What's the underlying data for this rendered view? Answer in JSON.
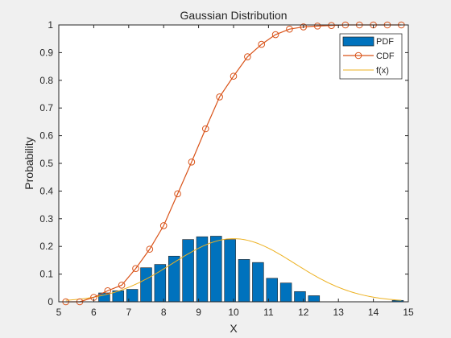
{
  "chart_data": {
    "type": "bar",
    "title": "Gaussian Distribution",
    "xlabel": "X",
    "ylabel": "Probability",
    "xlim": [
      5,
      15
    ],
    "ylim": [
      0,
      1
    ],
    "xticks": [
      "5",
      "6",
      "7",
      "8",
      "9",
      "10",
      "11",
      "12",
      "13",
      "14",
      "15"
    ],
    "yticks": [
      "0",
      "0.1",
      "0.2",
      "0.3",
      "0.4",
      "0.5",
      "0.6",
      "0.7",
      "0.8",
      "0.9",
      "1"
    ],
    "grid": false,
    "legend_position": "top-right",
    "legend": [
      "PDF",
      "CDF",
      "f(x)"
    ],
    "colors": {
      "pdf": "#0072bd",
      "cdf": "#d95319",
      "fx": "#edb120"
    },
    "series": [
      {
        "name": "PDF",
        "type": "bar",
        "x": [
          5.5,
          5.9,
          6.3,
          6.7,
          7.1,
          7.5,
          7.9,
          8.3,
          8.7,
          9.1,
          9.5,
          9.9,
          10.3,
          10.7,
          11.1,
          11.5,
          11.9,
          12.3,
          12.7,
          13.1,
          13.5,
          13.9,
          14.3,
          14.7
        ],
        "values": [
          0.0,
          0.0,
          0.032,
          0.04,
          0.045,
          0.123,
          0.135,
          0.165,
          0.225,
          0.235,
          0.237,
          0.225,
          0.153,
          0.142,
          0.085,
          0.068,
          0.037,
          0.022,
          0.0,
          0.0,
          0.0,
          0.0,
          0.0,
          0.005
        ]
      },
      {
        "name": "CDF",
        "type": "line",
        "x": [
          5.2,
          5.6,
          6.0,
          6.4,
          6.8,
          7.2,
          7.6,
          8.0,
          8.4,
          8.8,
          9.2,
          9.6,
          10.0,
          10.4,
          10.8,
          11.2,
          11.6,
          12.0,
          12.4,
          12.8,
          13.2,
          13.6,
          14.0,
          14.4,
          14.8
        ],
        "values": [
          0.0,
          0.0,
          0.016,
          0.04,
          0.06,
          0.12,
          0.19,
          0.275,
          0.39,
          0.505,
          0.625,
          0.74,
          0.815,
          0.885,
          0.93,
          0.965,
          0.985,
          0.993,
          0.996,
          0.998,
          1.0,
          1.0,
          1.0,
          1.0,
          1.0
        ]
      },
      {
        "name": "f(x)",
        "type": "line",
        "mean": 10,
        "std": 1.75
      }
    ]
  }
}
